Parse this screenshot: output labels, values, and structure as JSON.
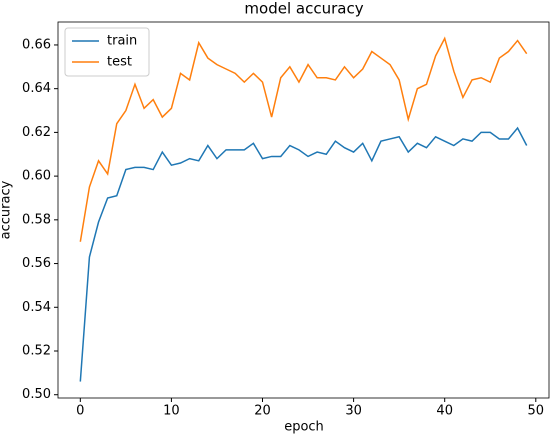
{
  "chart_data": {
    "type": "line",
    "title": "model accuracy",
    "x_label": "epoch",
    "y_label": "accuracy",
    "x": [
      0,
      1,
      2,
      3,
      4,
      5,
      6,
      7,
      8,
      9,
      10,
      11,
      12,
      13,
      14,
      15,
      16,
      17,
      18,
      19,
      20,
      21,
      22,
      23,
      24,
      25,
      26,
      27,
      28,
      29,
      30,
      31,
      32,
      33,
      34,
      35,
      36,
      37,
      38,
      39,
      40,
      41,
      42,
      43,
      44,
      45,
      46,
      47,
      48,
      49
    ],
    "series": [
      {
        "name": "train",
        "color": "#1f77b4",
        "values": [
          0.506,
          0.563,
          0.579,
          0.59,
          0.591,
          0.603,
          0.604,
          0.604,
          0.603,
          0.611,
          0.605,
          0.606,
          0.608,
          0.607,
          0.614,
          0.608,
          0.612,
          0.612,
          0.612,
          0.615,
          0.608,
          0.609,
          0.609,
          0.614,
          0.612,
          0.609,
          0.611,
          0.61,
          0.616,
          0.613,
          0.611,
          0.615,
          0.607,
          0.616,
          0.617,
          0.618,
          0.611,
          0.615,
          0.613,
          0.618,
          0.616,
          0.614,
          0.617,
          0.616,
          0.62,
          0.62,
          0.617,
          0.617,
          0.622,
          0.614
        ]
      },
      {
        "name": "test",
        "color": "#ff7f0e",
        "values": [
          0.57,
          0.595,
          0.607,
          0.601,
          0.624,
          0.63,
          0.642,
          0.631,
          0.635,
          0.627,
          0.631,
          0.647,
          0.644,
          0.661,
          0.654,
          0.651,
          0.649,
          0.647,
          0.643,
          0.647,
          0.643,
          0.627,
          0.645,
          0.65,
          0.643,
          0.651,
          0.645,
          0.645,
          0.644,
          0.65,
          0.645,
          0.649,
          0.657,
          0.654,
          0.651,
          0.644,
          0.626,
          0.64,
          0.642,
          0.655,
          0.663,
          0.648,
          0.636,
          0.644,
          0.645,
          0.643,
          0.654,
          0.657,
          0.662,
          0.656
        ]
      }
    ],
    "xlim": [
      -2.45,
      51.45
    ],
    "xticks": [
      0,
      10,
      20,
      30,
      40,
      50
    ],
    "ylim": [
      0.4985,
      0.6705
    ],
    "yticks": [
      {
        "value": 0.5,
        "label": "0.50"
      },
      {
        "value": 0.52,
        "label": "0.52"
      },
      {
        "value": 0.54,
        "label": "0.54"
      },
      {
        "value": 0.56,
        "label": "0.56"
      },
      {
        "value": 0.58,
        "label": "0.58"
      },
      {
        "value": 0.6,
        "label": "0.60"
      },
      {
        "value": 0.62,
        "label": "0.62"
      },
      {
        "value": 0.64,
        "label": "0.64"
      },
      {
        "value": 0.66,
        "label": "0.66"
      }
    ],
    "legend": "upper left"
  }
}
